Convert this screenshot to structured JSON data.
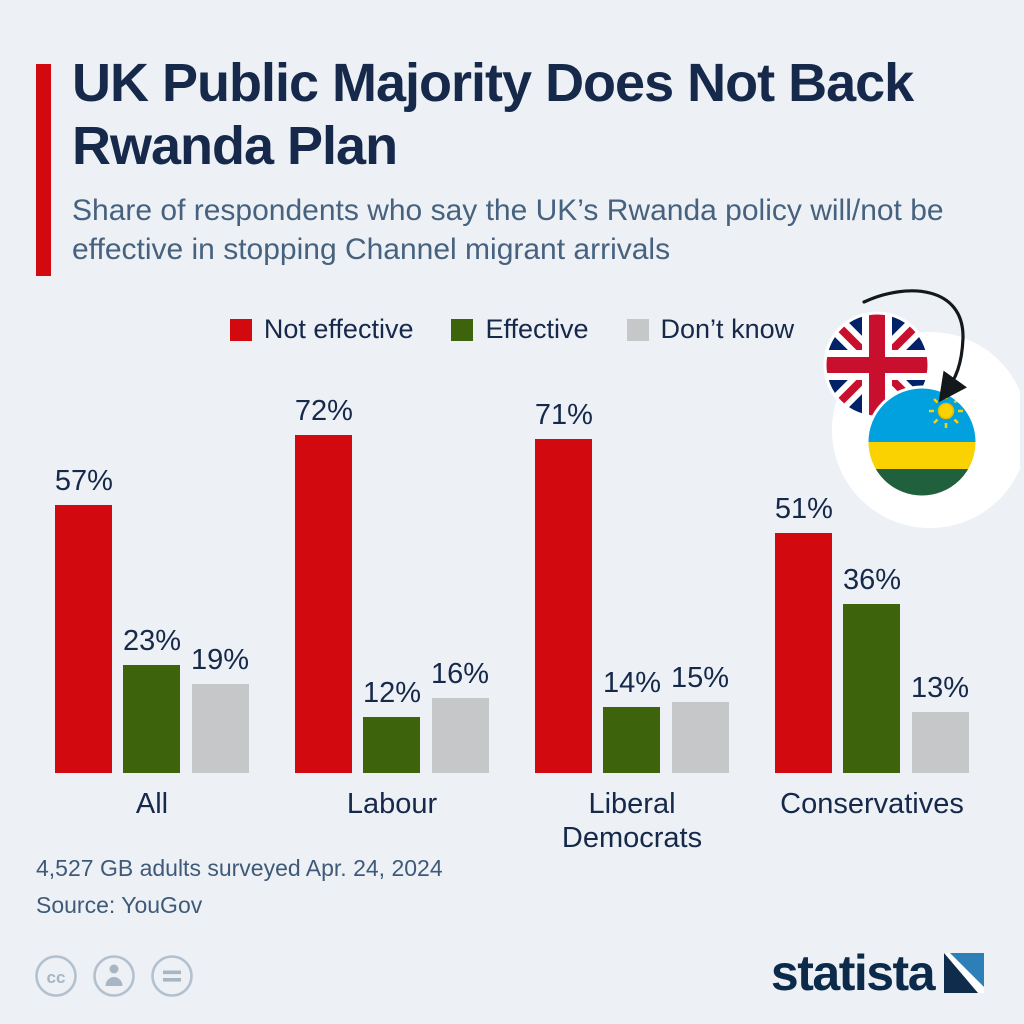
{
  "header": {
    "title": "UK Public Majority Does Not Back Rwanda Plan",
    "subtitle": "Share of respondents who say the UK’s Rwanda policy will/not be effective in stopping Channel migrant arrivals"
  },
  "legend": [
    {
      "label": "Not effective",
      "color": "#d20a10"
    },
    {
      "label": "Effective",
      "color": "#3d640d"
    },
    {
      "label": "Don’t know",
      "color": "#c6c7c9"
    }
  ],
  "chart_data": {
    "type": "bar",
    "title": "UK Public Majority Does Not Back Rwanda Plan",
    "categories": [
      "All",
      "Labour",
      "Liberal Democrats",
      "Conservatives"
    ],
    "series": [
      {
        "name": "Not effective",
        "color": "#d20a10",
        "values": [
          57,
          72,
          71,
          51
        ]
      },
      {
        "name": "Effective",
        "color": "#3d640d",
        "values": [
          23,
          12,
          14,
          36
        ]
      },
      {
        "name": "Don’t know",
        "color": "#c6c7c9",
        "values": [
          19,
          16,
          15,
          13
        ]
      }
    ],
    "value_suffix": "%",
    "xlabel": "",
    "ylabel": "",
    "ylim": [
      0,
      80
    ],
    "grid": false,
    "legend_position": "top"
  },
  "icons": {
    "uk_flag": "uk-flag",
    "rwanda_flag": "rwanda-flag",
    "arrow": "curved-arrow-uk-to-rwanda",
    "cc": "creative-commons",
    "attribution": "attribution-person",
    "equals": "equals-sign"
  },
  "footer": {
    "survey_note": "4,527 GB adults surveyed Apr. 24, 2024",
    "source": "Source: YouGov"
  },
  "branding": {
    "wordmark": "statista"
  },
  "colors": {
    "background": "#edf1f6",
    "accent_red": "#d20a10",
    "title_navy": "#16294b",
    "subtitle_slate": "#46627f"
  }
}
